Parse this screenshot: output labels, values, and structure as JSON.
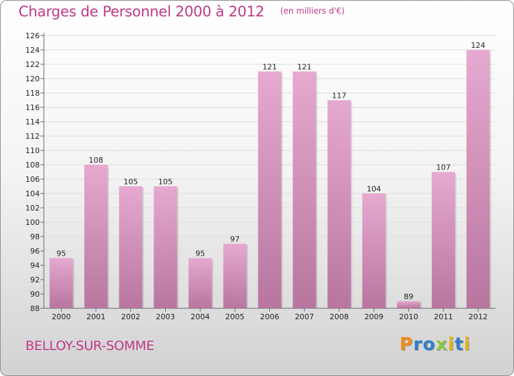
{
  "header": {
    "title": "Charges de Personnel 2000 à 2012",
    "subtitle": "(en milliers d'€)"
  },
  "footer": {
    "city": "BELLOY-SUR-SOMME",
    "logo_text": "Proxiti",
    "logo_colors": [
      "#f08a1c",
      "#2e7fc8",
      "#2e7fc8",
      "#8cc63f",
      "#e4b112",
      "#2e7fc8",
      "#e4b112"
    ]
  },
  "colors": {
    "bar_light": "#e6a9d0",
    "bar_dark": "#b8769f",
    "title": "#c03a86"
  },
  "chart_data": {
    "type": "bar",
    "categories": [
      "2000",
      "2001",
      "2002",
      "2003",
      "2004",
      "2005",
      "2006",
      "2007",
      "2008",
      "2009",
      "2010",
      "2011",
      "2012"
    ],
    "values": [
      95,
      108,
      105,
      105,
      95,
      97,
      121,
      121,
      117,
      104,
      89,
      107,
      124
    ],
    "ylim": [
      88,
      126
    ],
    "yticks": [
      88,
      90,
      92,
      94,
      96,
      98,
      100,
      102,
      104,
      106,
      108,
      110,
      112,
      114,
      116,
      118,
      120,
      122,
      124,
      126
    ],
    "grid": true,
    "xlabel": "",
    "ylabel": ""
  }
}
